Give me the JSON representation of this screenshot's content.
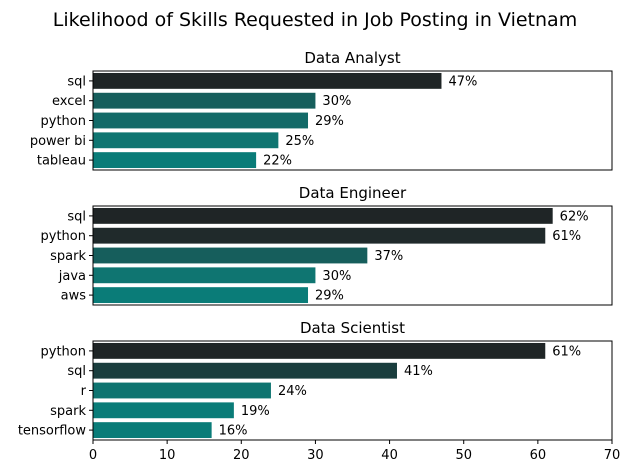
{
  "chart_data": {
    "type": "bar",
    "orientation": "horizontal",
    "title": "Likelihood of Skills Requested in Job Posting in Vietnam",
    "xlim": [
      0,
      70
    ],
    "xticks": [
      0,
      10,
      20,
      30,
      40,
      50,
      60,
      70
    ],
    "value_suffix": "%",
    "panels": [
      {
        "title": "Data Analyst",
        "categories": [
          "sql",
          "excel",
          "python",
          "power bi",
          "tableau"
        ],
        "values": [
          47,
          30,
          29,
          25,
          22
        ],
        "colors": [
          "#1f2526",
          "#165e5c",
          "#136a68",
          "#0f7571",
          "#0a7c78"
        ]
      },
      {
        "title": "Data Engineer",
        "categories": [
          "sql",
          "python",
          "spark",
          "java",
          "aws"
        ],
        "values": [
          62,
          61,
          37,
          30,
          29
        ],
        "colors": [
          "#1f2526",
          "#202a2b",
          "#165e5c",
          "#0f7571",
          "#0a7c78"
        ]
      },
      {
        "title": "Data Scientist",
        "categories": [
          "python",
          "sql",
          "r",
          "spark",
          "tensorflow"
        ],
        "values": [
          61,
          41,
          24,
          19,
          16
        ],
        "colors": [
          "#1f2526",
          "#1a3e3e",
          "#0e7470",
          "#0a7c78",
          "#0a7c78"
        ]
      }
    ]
  }
}
